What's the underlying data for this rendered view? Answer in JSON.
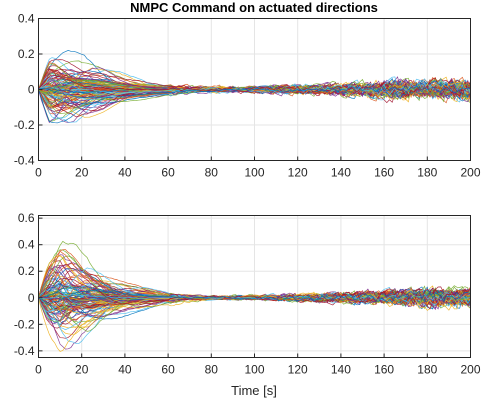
{
  "chart_data": [
    {
      "type": "line",
      "title": "NMPC Command on actuated directions",
      "xlabel": "",
      "ylabel": "",
      "xlim": [
        0,
        200
      ],
      "ylim": [
        -0.4,
        0.4
      ],
      "xticks": [
        0,
        20,
        40,
        60,
        80,
        100,
        120,
        140,
        160,
        180,
        200
      ],
      "yticks": [
        -0.4,
        -0.2,
        0,
        0.2,
        0.4
      ],
      "xtick_labels": [
        "0",
        "20",
        "40",
        "60",
        "80",
        "100",
        "120",
        "140",
        "160",
        "180",
        "200"
      ],
      "ytick_labels": [
        "-0.4",
        "-0.2",
        "0",
        "0.2",
        "0.4"
      ],
      "grid": true,
      "legend": "none",
      "series_count": 120,
      "envelope": {
        "t": [
          0,
          5,
          10,
          20,
          30,
          40,
          50,
          60,
          70,
          80,
          100,
          120,
          140,
          160,
          180,
          200
        ],
        "max_abs": [
          0.15,
          0.3,
          0.26,
          0.2,
          0.18,
          0.15,
          0.12,
          0.09,
          0.07,
          0.06,
          0.06,
          0.07,
          0.07,
          0.09,
          0.09,
          0.08
        ]
      }
    },
    {
      "type": "line",
      "title": "",
      "xlabel": "Time [s]",
      "ylabel": "",
      "xlim": [
        0,
        200
      ],
      "ylim": [
        -0.45,
        0.62
      ],
      "xticks": [
        0,
        20,
        40,
        60,
        80,
        100,
        120,
        140,
        160,
        180,
        200
      ],
      "yticks": [
        -0.4,
        -0.2,
        0,
        0.2,
        0.4,
        0.6
      ],
      "xtick_labels": [
        "0",
        "20",
        "40",
        "60",
        "80",
        "100",
        "120",
        "140",
        "160",
        "180",
        "200"
      ],
      "ytick_labels": [
        "-0.4",
        "-0.2",
        "0",
        "0.2",
        "0.4",
        "0.6"
      ],
      "grid": true,
      "legend": "none",
      "series_count": 120,
      "envelope": {
        "t": [
          0,
          5,
          10,
          20,
          30,
          40,
          50,
          60,
          70,
          80,
          100,
          120,
          140,
          160,
          180,
          200
        ],
        "max_abs": [
          0.25,
          0.4,
          0.5,
          0.35,
          0.28,
          0.22,
          0.17,
          0.12,
          0.08,
          0.06,
          0.06,
          0.08,
          0.09,
          0.1,
          0.12,
          0.1
        ]
      }
    }
  ],
  "colors": {
    "line_palette": [
      "#0072BD",
      "#D95319",
      "#EDB120",
      "#7E2F8E",
      "#77AC30",
      "#4DBEEE",
      "#A2142F"
    ],
    "grid": "#e5e5e5",
    "axis": "#262626"
  }
}
